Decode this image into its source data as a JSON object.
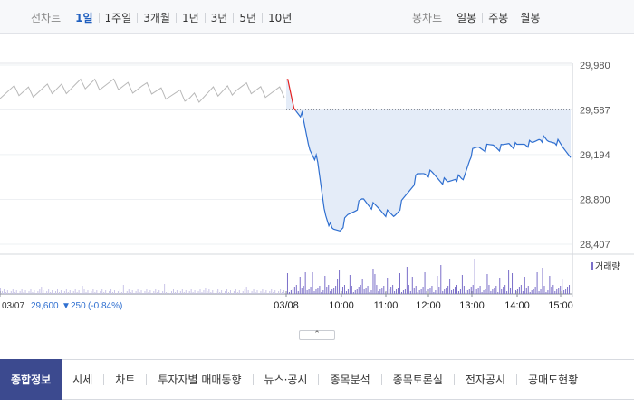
{
  "toolbar": {
    "line_label": "선차트",
    "line_periods": [
      "1일",
      "1주일",
      "3개월",
      "1년",
      "3년",
      "5년",
      "10년"
    ],
    "active_period": "1일",
    "candle_label": "봉차트",
    "candle_periods": [
      "일봉",
      "주봉",
      "월봉"
    ]
  },
  "chart": {
    "y_ticks": [
      "29,980",
      "29,587",
      "29,194",
      "28,800",
      "28,407"
    ],
    "x_ticks": [
      "03/07",
      "03/08",
      "10:00",
      "11:00",
      "12:00",
      "13:00",
      "14:00",
      "15:00"
    ],
    "prev_close_info": {
      "date": "03/07",
      "price": "29,600",
      "arrow": "▼",
      "change": "250",
      "percent": "(-0.84%)"
    },
    "volume_legend": "거래량",
    "colors": {
      "today_line": "#2f6fd0",
      "prev_line": "#b8b8b8",
      "fill": "#e4ecf8",
      "up": "#e52020",
      "volume": "#7b6fc9",
      "down_text": "#2f6fd0"
    }
  },
  "chart_data": [
    {
      "type": "line",
      "title": "",
      "xlabel": "",
      "ylabel": "",
      "ylim": [
        28407,
        29980
      ],
      "x_ticks": [
        "03/07",
        "03/08",
        "10:00",
        "11:00",
        "12:00",
        "13:00",
        "14:00",
        "15:00"
      ],
      "y_ticks": [
        29980,
        29587,
        29194,
        28800,
        28407
      ],
      "reference_line": 29587,
      "series": [
        {
          "x": [
            "03/07 09:00",
            "03/07 10:00",
            "03/07 11:00",
            "03/07 12:00",
            "03/07 13:00",
            "03/07 14:00",
            "03/07 15:00"
          ],
          "values": [
            29740,
            29760,
            29820,
            29780,
            29690,
            29780,
            29730
          ]
        },
        {
          "x": [
            "03/08 09:00",
            "09:10",
            "09:20",
            "09:30",
            "09:40",
            "09:50",
            "10:00",
            "10:10",
            "10:20",
            "10:30",
            "10:40",
            "10:50",
            "11:00",
            "11:10",
            "11:20",
            "11:30",
            "11:40",
            "11:50",
            "12:00",
            "12:10",
            "12:20",
            "12:30",
            "12:40",
            "12:50",
            "13:00",
            "13:10",
            "13:20",
            "13:30",
            "13:40",
            "13:50",
            "14:00",
            "14:10",
            "14:20",
            "14:30",
            "14:40",
            "14:50",
            "15:00",
            "15:10"
          ],
          "values": [
            29880,
            29600,
            29550,
            29250,
            29150,
            28700,
            28520,
            28540,
            28650,
            28720,
            28800,
            28750,
            28720,
            28680,
            28650,
            28760,
            28880,
            29000,
            29040,
            29020,
            28980,
            28940,
            29000,
            28960,
            29200,
            29260,
            29250,
            29280,
            29250,
            29300,
            29260,
            29300,
            29280,
            29350,
            29300,
            29320,
            29250,
            29200
          ]
        }
      ]
    },
    {
      "type": "bar",
      "title": "거래량",
      "x": [
        "03/07",
        "03/08",
        "10:00",
        "11:00",
        "12:00",
        "13:00",
        "14:00",
        "15:00"
      ],
      "values": [
        6,
        14,
        22,
        10,
        8,
        8,
        7,
        9
      ]
    }
  ],
  "tabs": {
    "items": [
      "종합정보",
      "시세",
      "차트",
      "투자자별 매매동향",
      "뉴스·공시",
      "종목분석",
      "종목토론실",
      "전자공시",
      "공매도현황"
    ],
    "active": "종합정보"
  }
}
